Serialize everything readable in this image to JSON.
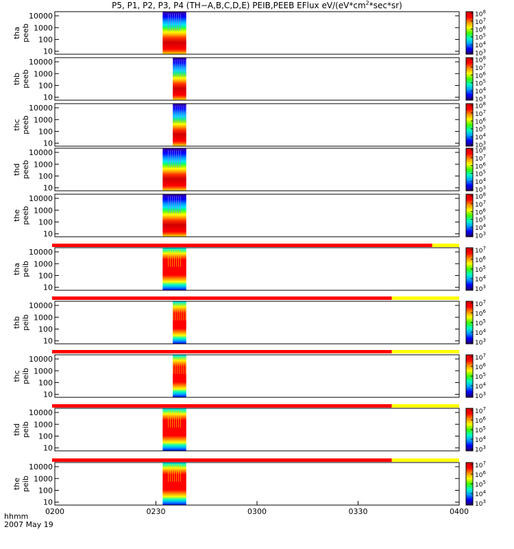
{
  "title": "P5, P1, P2, P3, P4 (TH−A,B,C,D,E) PEIB,PEEB EFlux eV/(eV*cm",
  "title_sup": "2",
  "title_end": "*sec*sr)",
  "x_axis": {
    "label_line1": "hhmm",
    "label_line2": "2007 May 19",
    "ticks": [
      "0200",
      "0230",
      "0300",
      "0330",
      "0400"
    ]
  },
  "chart_data": [
    {
      "type": "heatmap",
      "probe": "tha",
      "species": "peeb",
      "ylabel": [
        "tha",
        "peeb"
      ],
      "yscale": "log",
      "yticks": [
        "10",
        "100",
        "1000",
        "10000"
      ],
      "time_range": [
        "0200",
        "0400"
      ],
      "data_window": [
        "0232",
        "0239"
      ],
      "colorbar": {
        "scale": "log",
        "ticks_exp": [
          3,
          4,
          5,
          6,
          7,
          8
        ]
      }
    },
    {
      "type": "heatmap",
      "probe": "thb",
      "species": "peeb",
      "ylabel": [
        "thb",
        "peeb"
      ],
      "yscale": "log",
      "yticks": [
        "10",
        "100",
        "1000",
        "10000"
      ],
      "time_range": [
        "0200",
        "0400"
      ],
      "data_window": [
        "0235",
        "0239"
      ],
      "colorbar": {
        "scale": "log",
        "ticks_exp": [
          3,
          4,
          5,
          6,
          7,
          8
        ]
      }
    },
    {
      "type": "heatmap",
      "probe": "thc",
      "species": "peeb",
      "ylabel": [
        "thc",
        "peeb"
      ],
      "yscale": "log",
      "yticks": [
        "10",
        "100",
        "1000",
        "10000"
      ],
      "time_range": [
        "0200",
        "0400"
      ],
      "data_window": [
        "0235",
        "0239"
      ],
      "colorbar": {
        "scale": "log",
        "ticks_exp": [
          3,
          4,
          5,
          6,
          7,
          8
        ]
      }
    },
    {
      "type": "heatmap",
      "probe": "thd",
      "species": "peeb",
      "ylabel": [
        "thd",
        "peeb"
      ],
      "yscale": "log",
      "yticks": [
        "10",
        "100",
        "1000",
        "10000"
      ],
      "time_range": [
        "0200",
        "0400"
      ],
      "data_window": [
        "0232",
        "0239"
      ],
      "colorbar": {
        "scale": "log",
        "ticks_exp": [
          3,
          4,
          5,
          6,
          7,
          8
        ]
      }
    },
    {
      "type": "heatmap",
      "probe": "the",
      "species": "peeb",
      "ylabel": [
        "the",
        "peeb"
      ],
      "yscale": "log",
      "yticks": [
        "10",
        "100",
        "1000",
        "10000"
      ],
      "time_range": [
        "0200",
        "0400"
      ],
      "data_window": [
        "0232",
        "0239"
      ],
      "colorbar": {
        "scale": "log",
        "ticks_exp": [
          3,
          4,
          5,
          6,
          7,
          8
        ]
      }
    },
    {
      "type": "heatmap",
      "probe": "tha",
      "species": "peib",
      "ylabel": [
        "tha",
        "peib"
      ],
      "yscale": "log",
      "yticks": [
        "10",
        "100",
        "1000",
        "10000"
      ],
      "time_range": [
        "0200",
        "0400"
      ],
      "data_window": [
        "0232",
        "0239"
      ],
      "colorbar": {
        "scale": "log",
        "ticks_exp": [
          3,
          4,
          5,
          6,
          7
        ]
      }
    },
    {
      "type": "heatmap",
      "probe": "thb",
      "species": "peib",
      "ylabel": [
        "thb",
        "peib"
      ],
      "yscale": "log",
      "yticks": [
        "10",
        "100",
        "1000",
        "10000"
      ],
      "time_range": [
        "0200",
        "0400"
      ],
      "data_window": [
        "0235",
        "0239"
      ],
      "colorbar": {
        "scale": "log",
        "ticks_exp": [
          3,
          4,
          5,
          6,
          7
        ]
      }
    },
    {
      "type": "heatmap",
      "probe": "thc",
      "species": "peib",
      "ylabel": [
        "thc",
        "peib"
      ],
      "yscale": "log",
      "yticks": [
        "10",
        "100",
        "1000",
        "10000"
      ],
      "time_range": [
        "0200",
        "0400"
      ],
      "data_window": [
        "0235",
        "0239"
      ],
      "colorbar": {
        "scale": "log",
        "ticks_exp": [
          3,
          4,
          5,
          6,
          7
        ]
      }
    },
    {
      "type": "heatmap",
      "probe": "thd",
      "species": "peib",
      "ylabel": [
        "thd",
        "peib"
      ],
      "yscale": "log",
      "yticks": [
        "10",
        "100",
        "1000",
        "10000"
      ],
      "time_range": [
        "0200",
        "0400"
      ],
      "data_window": [
        "0232",
        "0239"
      ],
      "colorbar": {
        "scale": "log",
        "ticks_exp": [
          3,
          4,
          5,
          6,
          7
        ]
      }
    },
    {
      "type": "heatmap",
      "probe": "the",
      "species": "peib",
      "ylabel": [
        "the",
        "peib"
      ],
      "yscale": "log",
      "yticks": [
        "10",
        "100",
        "1000",
        "10000"
      ],
      "time_range": [
        "0200",
        "0400"
      ],
      "data_window": [
        "0232",
        "0239"
      ],
      "colorbar": {
        "scale": "log",
        "ticks_exp": [
          3,
          4,
          5,
          6,
          7
        ]
      }
    }
  ],
  "status_bars": [
    {
      "red_end_time": "0352"
    },
    {
      "red_end_time": "0340"
    },
    {
      "red_end_time": "0340"
    },
    {
      "red_end_time": "0340"
    },
    {
      "red_end_time": "0340"
    }
  ],
  "colors": {
    "status_red": "#ff0000",
    "status_yellow": "#ffff00",
    "colormap": [
      "#2a0066",
      "#0000ff",
      "#00a0ff",
      "#00ffc0",
      "#40ff00",
      "#ffff00",
      "#ff9000",
      "#ff0000",
      "#d00000"
    ]
  }
}
